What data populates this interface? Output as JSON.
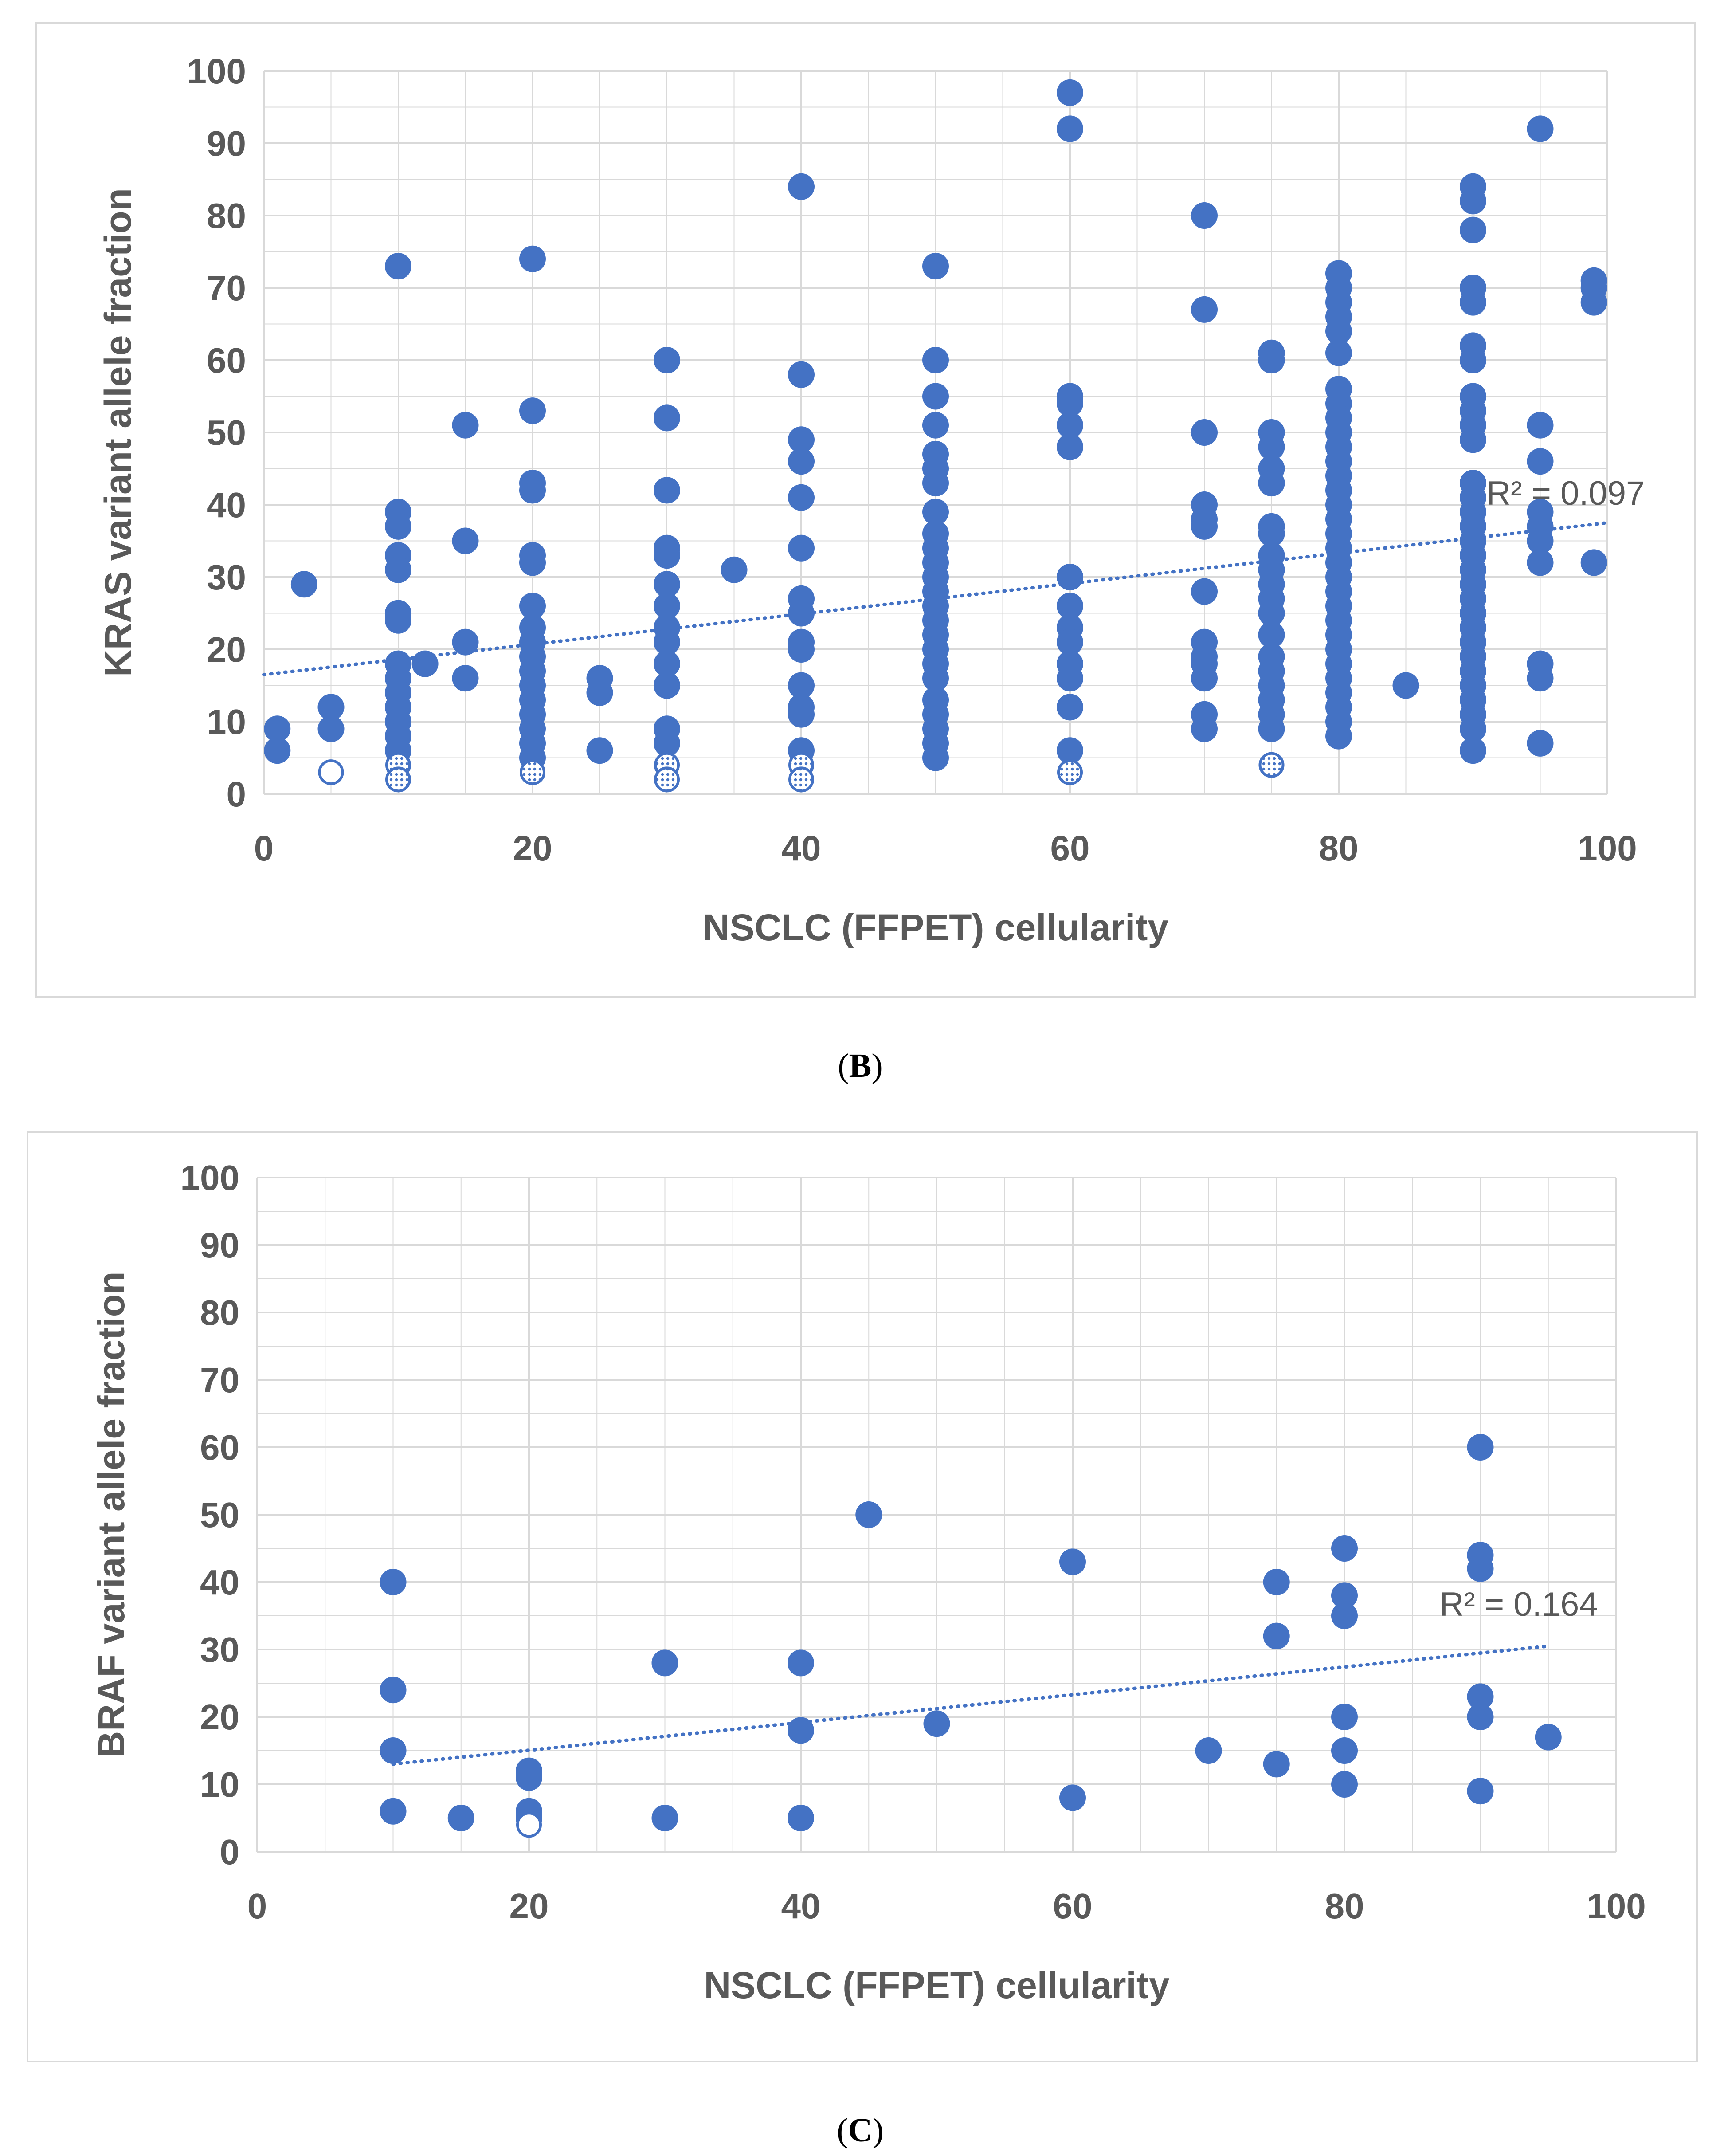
{
  "captions": {
    "b_open": "(",
    "b_letter": "B",
    "b_close": ")",
    "c_open": "(",
    "c_letter": "C",
    "c_close": ")"
  },
  "colors": {
    "marker": "#4472c4",
    "grid": "#d9d9d9",
    "trend": "#4472c4",
    "text": "#595959"
  },
  "chart_data": [
    {
      "id": "B",
      "type": "scatter",
      "xlabel": "NSCLC (FFPET) cellularity",
      "ylabel": "KRAS variant allele fraction",
      "xlim": [
        0,
        100
      ],
      "ylim": [
        0,
        100
      ],
      "xticks": [
        0,
        20,
        40,
        60,
        80,
        100
      ],
      "yticks": [
        0,
        10,
        20,
        30,
        40,
        50,
        60,
        70,
        80,
        90,
        100
      ],
      "annotation": "R² = 0.097",
      "trendline": {
        "x": [
          0,
          100
        ],
        "y": [
          16.5,
          37.5
        ]
      },
      "hollow_points": [
        [
          5,
          3
        ]
      ],
      "patterned_points": [
        [
          10,
          4
        ],
        [
          10,
          2
        ],
        [
          20,
          3
        ],
        [
          30,
          4
        ],
        [
          30,
          2
        ],
        [
          40,
          4
        ],
        [
          40,
          2
        ],
        [
          60,
          3
        ],
        [
          75,
          4
        ]
      ],
      "points": [
        [
          1,
          9
        ],
        [
          1,
          6
        ],
        [
          3,
          29
        ],
        [
          5,
          12
        ],
        [
          5,
          9
        ],
        [
          10,
          73
        ],
        [
          10,
          39
        ],
        [
          10,
          37
        ],
        [
          10,
          33
        ],
        [
          10,
          31
        ],
        [
          10,
          25
        ],
        [
          10,
          24
        ],
        [
          10,
          18
        ],
        [
          10,
          16
        ],
        [
          10,
          14
        ],
        [
          10,
          12
        ],
        [
          10,
          10
        ],
        [
          10,
          8
        ],
        [
          10,
          6
        ],
        [
          12,
          18
        ],
        [
          15,
          51
        ],
        [
          15,
          35
        ],
        [
          15,
          21
        ],
        [
          15,
          16
        ],
        [
          20,
          74
        ],
        [
          20,
          53
        ],
        [
          20,
          43
        ],
        [
          20,
          42
        ],
        [
          20,
          33
        ],
        [
          20,
          32
        ],
        [
          20,
          26
        ],
        [
          20,
          23
        ],
        [
          20,
          21
        ],
        [
          20,
          19
        ],
        [
          20,
          17
        ],
        [
          20,
          15
        ],
        [
          20,
          13
        ],
        [
          20,
          11
        ],
        [
          20,
          9
        ],
        [
          20,
          7
        ],
        [
          20,
          5
        ],
        [
          25,
          16
        ],
        [
          25,
          14
        ],
        [
          25,
          6
        ],
        [
          30,
          60
        ],
        [
          30,
          52
        ],
        [
          30,
          42
        ],
        [
          30,
          34
        ],
        [
          30,
          33
        ],
        [
          30,
          29
        ],
        [
          30,
          26
        ],
        [
          30,
          23
        ],
        [
          30,
          21
        ],
        [
          30,
          18
        ],
        [
          30,
          15
        ],
        [
          30,
          9
        ],
        [
          30,
          7
        ],
        [
          35,
          31
        ],
        [
          40,
          84
        ],
        [
          40,
          58
        ],
        [
          40,
          49
        ],
        [
          40,
          46
        ],
        [
          40,
          41
        ],
        [
          40,
          34
        ],
        [
          40,
          27
        ],
        [
          40,
          25
        ],
        [
          40,
          21
        ],
        [
          40,
          20
        ],
        [
          40,
          15
        ],
        [
          40,
          12
        ],
        [
          40,
          11
        ],
        [
          40,
          6
        ],
        [
          50,
          73
        ],
        [
          50,
          60
        ],
        [
          50,
          55
        ],
        [
          50,
          51
        ],
        [
          50,
          47
        ],
        [
          50,
          45
        ],
        [
          50,
          43
        ],
        [
          50,
          39
        ],
        [
          50,
          36
        ],
        [
          50,
          34
        ],
        [
          50,
          32
        ],
        [
          50,
          30
        ],
        [
          50,
          28
        ],
        [
          50,
          26
        ],
        [
          50,
          24
        ],
        [
          50,
          22
        ],
        [
          50,
          20
        ],
        [
          50,
          18
        ],
        [
          50,
          16
        ],
        [
          50,
          13
        ],
        [
          50,
          11
        ],
        [
          50,
          9
        ],
        [
          50,
          7
        ],
        [
          50,
          5
        ],
        [
          60,
          97
        ],
        [
          60,
          92
        ],
        [
          60,
          55
        ],
        [
          60,
          54
        ],
        [
          60,
          51
        ],
        [
          60,
          48
        ],
        [
          60,
          30
        ],
        [
          60,
          26
        ],
        [
          60,
          23
        ],
        [
          60,
          21
        ],
        [
          60,
          18
        ],
        [
          60,
          16
        ],
        [
          60,
          12
        ],
        [
          60,
          6
        ],
        [
          70,
          80
        ],
        [
          70,
          67
        ],
        [
          70,
          50
        ],
        [
          70,
          40
        ],
        [
          70,
          38
        ],
        [
          70,
          37
        ],
        [
          70,
          28
        ],
        [
          70,
          21
        ],
        [
          70,
          19
        ],
        [
          70,
          18
        ],
        [
          70,
          16
        ],
        [
          70,
          11
        ],
        [
          70,
          9
        ],
        [
          75,
          61
        ],
        [
          75,
          60
        ],
        [
          75,
          50
        ],
        [
          75,
          48
        ],
        [
          75,
          45
        ],
        [
          75,
          43
        ],
        [
          75,
          37
        ],
        [
          75,
          36
        ],
        [
          75,
          33
        ],
        [
          75,
          31
        ],
        [
          75,
          29
        ],
        [
          75,
          27
        ],
        [
          75,
          25
        ],
        [
          75,
          22
        ],
        [
          75,
          19
        ],
        [
          75,
          17
        ],
        [
          75,
          15
        ],
        [
          75,
          13
        ],
        [
          75,
          11
        ],
        [
          75,
          9
        ],
        [
          80,
          72
        ],
        [
          80,
          70
        ],
        [
          80,
          68
        ],
        [
          80,
          66
        ],
        [
          80,
          64
        ],
        [
          80,
          61
        ],
        [
          80,
          56
        ],
        [
          80,
          54
        ],
        [
          80,
          52
        ],
        [
          80,
          50
        ],
        [
          80,
          48
        ],
        [
          80,
          46
        ],
        [
          80,
          44
        ],
        [
          80,
          42
        ],
        [
          80,
          40
        ],
        [
          80,
          38
        ],
        [
          80,
          36
        ],
        [
          80,
          34
        ],
        [
          80,
          32
        ],
        [
          80,
          30
        ],
        [
          80,
          28
        ],
        [
          80,
          26
        ],
        [
          80,
          24
        ],
        [
          80,
          22
        ],
        [
          80,
          20
        ],
        [
          80,
          18
        ],
        [
          80,
          16
        ],
        [
          80,
          14
        ],
        [
          80,
          12
        ],
        [
          80,
          10
        ],
        [
          80,
          8
        ],
        [
          85,
          15
        ],
        [
          90,
          84
        ],
        [
          90,
          82
        ],
        [
          90,
          78
        ],
        [
          90,
          70
        ],
        [
          90,
          68
        ],
        [
          90,
          62
        ],
        [
          90,
          60
        ],
        [
          90,
          55
        ],
        [
          90,
          53
        ],
        [
          90,
          51
        ],
        [
          90,
          49
        ],
        [
          90,
          43
        ],
        [
          90,
          41
        ],
        [
          90,
          39
        ],
        [
          90,
          37
        ],
        [
          90,
          35
        ],
        [
          90,
          33
        ],
        [
          90,
          31
        ],
        [
          90,
          29
        ],
        [
          90,
          27
        ],
        [
          90,
          25
        ],
        [
          90,
          23
        ],
        [
          90,
          21
        ],
        [
          90,
          19
        ],
        [
          90,
          17
        ],
        [
          90,
          15
        ],
        [
          90,
          13
        ],
        [
          90,
          11
        ],
        [
          90,
          9
        ],
        [
          90,
          6
        ],
        [
          95,
          92
        ],
        [
          95,
          51
        ],
        [
          95,
          46
        ],
        [
          95,
          39
        ],
        [
          95,
          37
        ],
        [
          95,
          35
        ],
        [
          95,
          32
        ],
        [
          95,
          18
        ],
        [
          95,
          16
        ],
        [
          95,
          7
        ],
        [
          99,
          71
        ],
        [
          99,
          70
        ],
        [
          99,
          68
        ],
        [
          99,
          32
        ]
      ]
    },
    {
      "id": "C",
      "type": "scatter",
      "xlabel": "NSCLC (FFPET) cellularity",
      "ylabel": "BRAF variant allele fraction",
      "xlim": [
        0,
        100
      ],
      "ylim": [
        0,
        100
      ],
      "xticks": [
        0,
        20,
        40,
        60,
        80,
        100
      ],
      "yticks": [
        0,
        10,
        20,
        30,
        40,
        50,
        60,
        70,
        80,
        90,
        100
      ],
      "annotation": "R² = 0.164",
      "trendline": {
        "x": [
          10,
          95
        ],
        "y": [
          13,
          30.5
        ]
      },
      "hollow_points": [
        [
          20,
          4
        ]
      ],
      "patterned_points": [],
      "points": [
        [
          10,
          40
        ],
        [
          10,
          24
        ],
        [
          10,
          15
        ],
        [
          10,
          6
        ],
        [
          15,
          5
        ],
        [
          20,
          12
        ],
        [
          20,
          11
        ],
        [
          20,
          6
        ],
        [
          20,
          5
        ],
        [
          30,
          28
        ],
        [
          30,
          5
        ],
        [
          40,
          28
        ],
        [
          40,
          18
        ],
        [
          40,
          5
        ],
        [
          45,
          50
        ],
        [
          50,
          19
        ],
        [
          60,
          43
        ],
        [
          60,
          8
        ],
        [
          70,
          15
        ],
        [
          75,
          40
        ],
        [
          75,
          32
        ],
        [
          75,
          13
        ],
        [
          80,
          45
        ],
        [
          80,
          38
        ],
        [
          80,
          35
        ],
        [
          80,
          20
        ],
        [
          80,
          15
        ],
        [
          80,
          10
        ],
        [
          90,
          60
        ],
        [
          90,
          44
        ],
        [
          90,
          42
        ],
        [
          90,
          23
        ],
        [
          90,
          20
        ],
        [
          90,
          9
        ],
        [
          95,
          17
        ]
      ]
    }
  ]
}
